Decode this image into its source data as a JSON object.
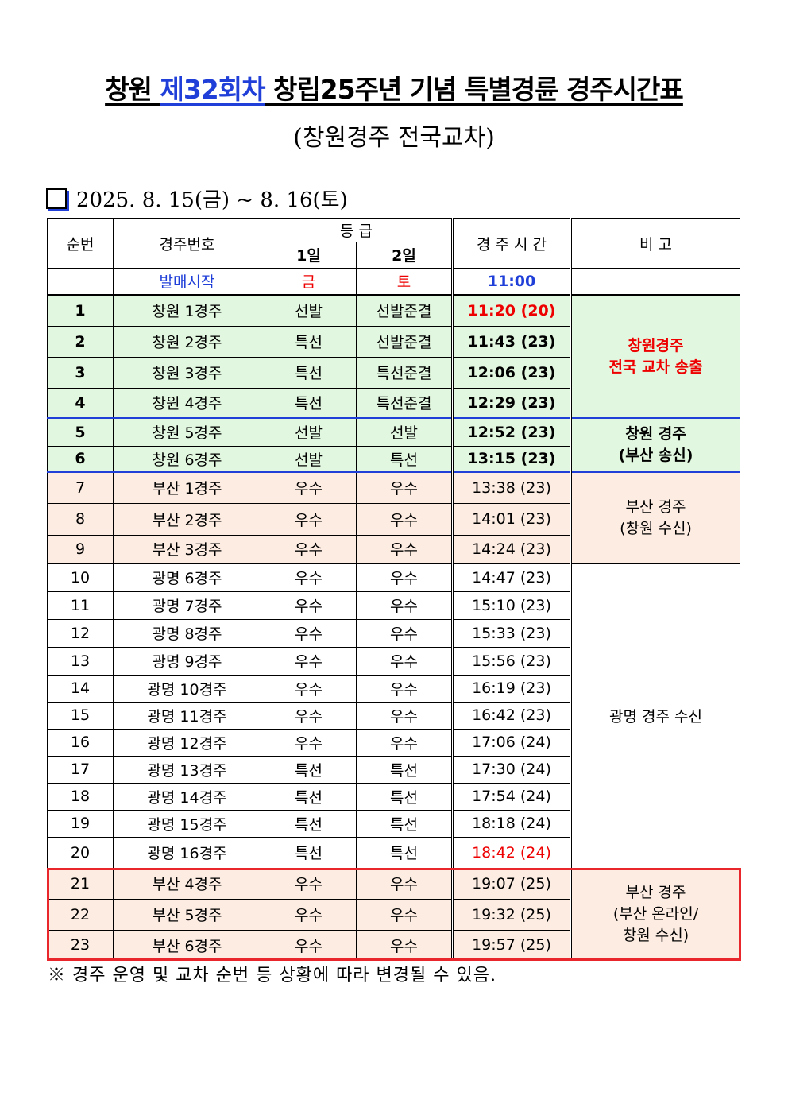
{
  "title": {
    "prefix": "창원 ",
    "highlight": "제32회차",
    "suffix": " 창립25주년 기념 특별경륜 경주시간표"
  },
  "subtitle": "(창원경주 전국교차)",
  "date_range": "2025. 8. 15(금) ~ 8. 16(토)",
  "table": {
    "headers": {
      "no": "순번",
      "race": "경주번호",
      "grade": "등 급",
      "day1": "1일",
      "day2": "2일",
      "time": "경 주 시 간",
      "note": "비 고"
    },
    "sale_row": {
      "label": "발매시작",
      "day1": "금",
      "day2": "토",
      "time": "11:00"
    },
    "rows": [
      {
        "no": "1",
        "race": "창원 1경주",
        "g1": "선발",
        "g2": "선발준결",
        "time": "11:20 (20)"
      },
      {
        "no": "2",
        "race": "창원 2경주",
        "g1": "특선",
        "g2": "선발준결",
        "time": "11:43 (23)"
      },
      {
        "no": "3",
        "race": "창원 3경주",
        "g1": "특선",
        "g2": "특선준결",
        "time": "12:06 (23)"
      },
      {
        "no": "4",
        "race": "창원 4경주",
        "g1": "특선",
        "g2": "특선준결",
        "time": "12:29 (23)"
      },
      {
        "no": "5",
        "race": "창원 5경주",
        "g1": "선발",
        "g2": "선발",
        "time": "12:52 (23)"
      },
      {
        "no": "6",
        "race": "창원 6경주",
        "g1": "선발",
        "g2": "특선",
        "time": "13:15 (23)"
      },
      {
        "no": "7",
        "race": "부산 1경주",
        "g1": "우수",
        "g2": "우수",
        "time": "13:38 (23)"
      },
      {
        "no": "8",
        "race": "부산 2경주",
        "g1": "우수",
        "g2": "우수",
        "time": "14:01 (23)"
      },
      {
        "no": "9",
        "race": "부산 3경주",
        "g1": "우수",
        "g2": "우수",
        "time": "14:24 (23)"
      },
      {
        "no": "10",
        "race": "광명 6경주",
        "g1": "우수",
        "g2": "우수",
        "time": "14:47 (23)"
      },
      {
        "no": "11",
        "race": "광명 7경주",
        "g1": "우수",
        "g2": "우수",
        "time": "15:10 (23)"
      },
      {
        "no": "12",
        "race": "광명 8경주",
        "g1": "우수",
        "g2": "우수",
        "time": "15:33 (23)"
      },
      {
        "no": "13",
        "race": "광명 9경주",
        "g1": "우수",
        "g2": "우수",
        "time": "15:56 (23)"
      },
      {
        "no": "14",
        "race": "광명 10경주",
        "g1": "우수",
        "g2": "우수",
        "time": "16:19 (23)"
      },
      {
        "no": "15",
        "race": "광명 11경주",
        "g1": "우수",
        "g2": "우수",
        "time": "16:42 (23)"
      },
      {
        "no": "16",
        "race": "광명 12경주",
        "g1": "우수",
        "g2": "우수",
        "time": "17:06 (24)"
      },
      {
        "no": "17",
        "race": "광명 13경주",
        "g1": "특선",
        "g2": "특선",
        "time": "17:30 (24)"
      },
      {
        "no": "18",
        "race": "광명 14경주",
        "g1": "특선",
        "g2": "특선",
        "time": "17:54 (24)"
      },
      {
        "no": "19",
        "race": "광명 15경주",
        "g1": "특선",
        "g2": "특선",
        "time": "18:18 (24)"
      },
      {
        "no": "20",
        "race": "광명 16경주",
        "g1": "특선",
        "g2": "특선",
        "time": "18:42 (24)"
      },
      {
        "no": "21",
        "race": "부산 4경주",
        "g1": "우수",
        "g2": "우수",
        "time": "19:07 (25)"
      },
      {
        "no": "22",
        "race": "부산 5경주",
        "g1": "우수",
        "g2": "우수",
        "time": "19:32 (25)"
      },
      {
        "no": "23",
        "race": "부산 6경주",
        "g1": "우수",
        "g2": "우수",
        "time": "19:57 (25)"
      }
    ],
    "remarks": {
      "changwon_line1": "창원경주",
      "changwon_line2": "전국 교차 송출",
      "changwon_busan_line1": "창원 경주",
      "changwon_busan_line2": "(부산 송신)",
      "busan_line1": "부산 경주",
      "busan_line2": "(창원 수신)",
      "gwangmyeong": "광명 경주 수신",
      "busan_online_line1": "부산 경주",
      "busan_online_line2": "(부산 온라인/",
      "busan_online_line3": "창원 수신)"
    }
  },
  "footnote": "※ 경주 운영 및 교차 순번 등 상황에 따라 변경될 수 있음.",
  "colors": {
    "accent_blue": "#1f3fd8",
    "red": "#ee0000",
    "green_bg": "#e2f7df",
    "peach_bg": "#fdece2",
    "box_red": "#e8262b"
  }
}
